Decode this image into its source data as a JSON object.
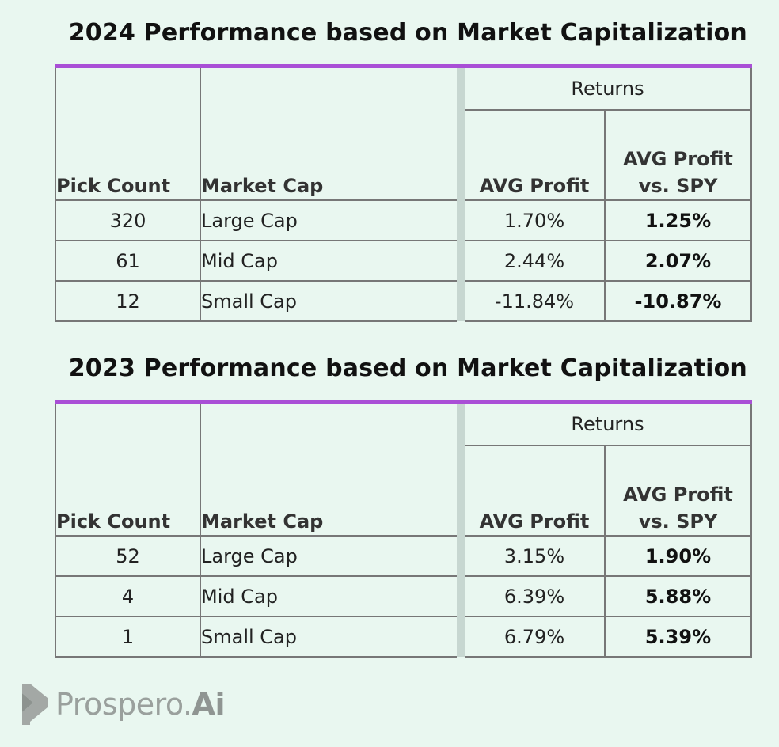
{
  "tables": [
    {
      "title": "2024 Performance based on Market Capitalization",
      "group_header": "Returns",
      "headers": {
        "pick_count": "Pick Count",
        "market_cap": "Market Cap",
        "avg_profit": "AVG Profit",
        "avg_profit_vs_spy_line1": "AVG Profit",
        "avg_profit_vs_spy_line2": "vs. SPY"
      },
      "rows": [
        {
          "pick_count": "320",
          "market_cap": "Large Cap",
          "avg_profit": "1.70%",
          "vs_spy": "1.25%"
        },
        {
          "pick_count": "61",
          "market_cap": "Mid Cap",
          "avg_profit": "2.44%",
          "vs_spy": "2.07%"
        },
        {
          "pick_count": "12",
          "market_cap": "Small Cap",
          "avg_profit": "-11.84%",
          "vs_spy": "-10.87%"
        }
      ]
    },
    {
      "title": "2023 Performance based on Market Capitalization",
      "group_header": "Returns",
      "headers": {
        "pick_count": "Pick Count",
        "market_cap": "Market Cap",
        "avg_profit": "AVG Profit",
        "avg_profit_vs_spy_line1": "AVG Profit",
        "avg_profit_vs_spy_line2": "vs. SPY"
      },
      "rows": [
        {
          "pick_count": "52",
          "market_cap": "Large Cap",
          "avg_profit": "3.15%",
          "vs_spy": "1.90%"
        },
        {
          "pick_count": "4",
          "market_cap": "Mid Cap",
          "avg_profit": "6.39%",
          "vs_spy": "5.88%"
        },
        {
          "pick_count": "1",
          "market_cap": "Small Cap",
          "avg_profit": "6.79%",
          "vs_spy": "5.39%"
        }
      ]
    }
  ],
  "logo": {
    "text_main": "Prospero.",
    "text_ai": "Ai",
    "icon": "prospero-chevron-icon"
  },
  "colors": {
    "background": "#e9f7f0",
    "accent_bar": "#a94fd6",
    "separator": "#c7d7d1",
    "logo_gray": "#9aa09d"
  }
}
